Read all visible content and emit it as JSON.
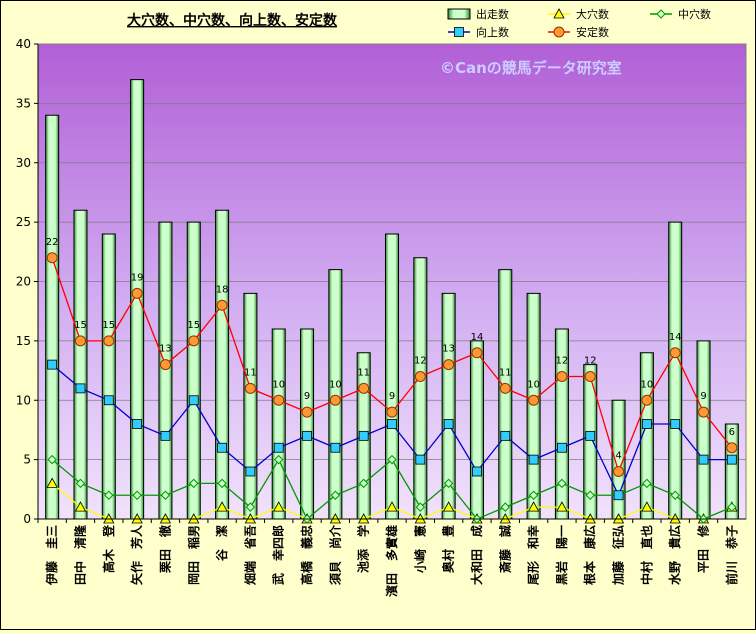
{
  "chart_data": {
    "type": "bar+line",
    "title": "大穴数、中穴数、向上数、安定数",
    "watermark": "©Canの競馬データ研究室",
    "ylim": [
      0,
      40
    ],
    "yticks": [
      0,
      5,
      10,
      15,
      20,
      25,
      30,
      35,
      40
    ],
    "grid": true,
    "legend_position": "top-right",
    "categories": [
      "伊藤　圭三",
      "田中　清隆",
      "高木　登",
      "矢作　芳人",
      "栗田　徹",
      "岡田　稲男",
      "谷　潔",
      "畑端　省吾",
      "武　幸四郎",
      "高橋　義忠",
      "須貝　尚介",
      "池添　学",
      "濱田　多實雄",
      "小崎　憲",
      "奥村　豊",
      "大和田　成",
      "斎藤　誠",
      "尾形　和幸",
      "黒岩　陽一",
      "根本　康広",
      "加藤　征弘",
      "中村　直也",
      "水野　貴広",
      "平田　修",
      "前川　恭子"
    ],
    "series": [
      {
        "name": "出走数",
        "kind": "bar",
        "color": "#ccffcc",
        "values": [
          34,
          26,
          24,
          37,
          25,
          25,
          26,
          19,
          16,
          16,
          21,
          14,
          24,
          22,
          19,
          15,
          21,
          19,
          16,
          13,
          10,
          14,
          25,
          15,
          8
        ]
      },
      {
        "name": "大穴数",
        "kind": "line",
        "color": "#ffff00",
        "marker": "triangle",
        "values": [
          3,
          1,
          0,
          0,
          0,
          0,
          1,
          0,
          1,
          0,
          0,
          0,
          1,
          0,
          1,
          0,
          0,
          1,
          1,
          0,
          0,
          1,
          0,
          0,
          1
        ]
      },
      {
        "name": "中穴数",
        "kind": "line",
        "color": "#009900",
        "marker": "diamond",
        "values": [
          5,
          3,
          2,
          2,
          2,
          3,
          3,
          1,
          5,
          0,
          2,
          3,
          5,
          1,
          3,
          0,
          1,
          2,
          3,
          2,
          2,
          3,
          2,
          0,
          1
        ]
      },
      {
        "name": "向上数",
        "kind": "line",
        "color": "#0000cc",
        "marker": "square",
        "values": [
          13,
          11,
          10,
          8,
          7,
          10,
          6,
          4,
          6,
          7,
          6,
          7,
          8,
          5,
          8,
          4,
          7,
          5,
          6,
          7,
          2,
          8,
          8,
          5,
          5
        ]
      },
      {
        "name": "安定数",
        "kind": "line",
        "color": "#ff0000",
        "marker": "circle",
        "values": [
          22,
          15,
          15,
          19,
          13,
          15,
          18,
          11,
          10,
          9,
          10,
          11,
          9,
          12,
          13,
          14,
          11,
          10,
          12,
          12,
          4,
          10,
          14,
          9,
          6
        ]
      }
    ]
  }
}
